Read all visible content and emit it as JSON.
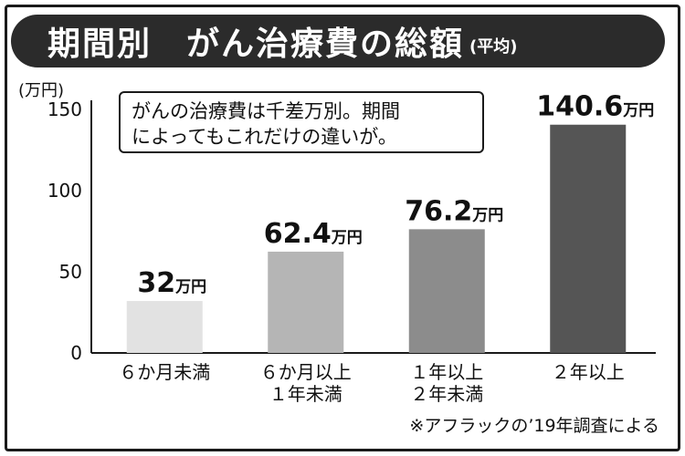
{
  "title": {
    "main": "期間別　がん治療費の総額",
    "sub": "(平均)"
  },
  "annotation": {
    "lines": [
      "がんの治療費は千差万別。期間",
      "によってもこれだけの違いが。"
    ]
  },
  "source_note": "※アフラックの’19年調査による",
  "chart_data": {
    "type": "bar",
    "title": "期間別　がん治療費の総額",
    "subtitle": "(平均)",
    "ylabel": "(万円)",
    "xlabel": "",
    "ylim": [
      0,
      150
    ],
    "yticks": [
      0,
      50,
      100,
      150
    ],
    "grid": false,
    "categories": [
      [
        "６か月未満"
      ],
      [
        "６か月以上",
        "１年未満"
      ],
      [
        "１年以上",
        "２年未満"
      ],
      [
        "２年以上"
      ]
    ],
    "values": [
      32,
      62.4,
      76.2,
      140.6
    ],
    "value_labels": [
      "32",
      "62.4",
      "76.2",
      "140.6"
    ],
    "value_unit": "万円",
    "colors": [
      "#e2e2e2",
      "#b5b5b5",
      "#8c8c8c",
      "#555555"
    ],
    "axis_color": "#1a1a1a"
  }
}
